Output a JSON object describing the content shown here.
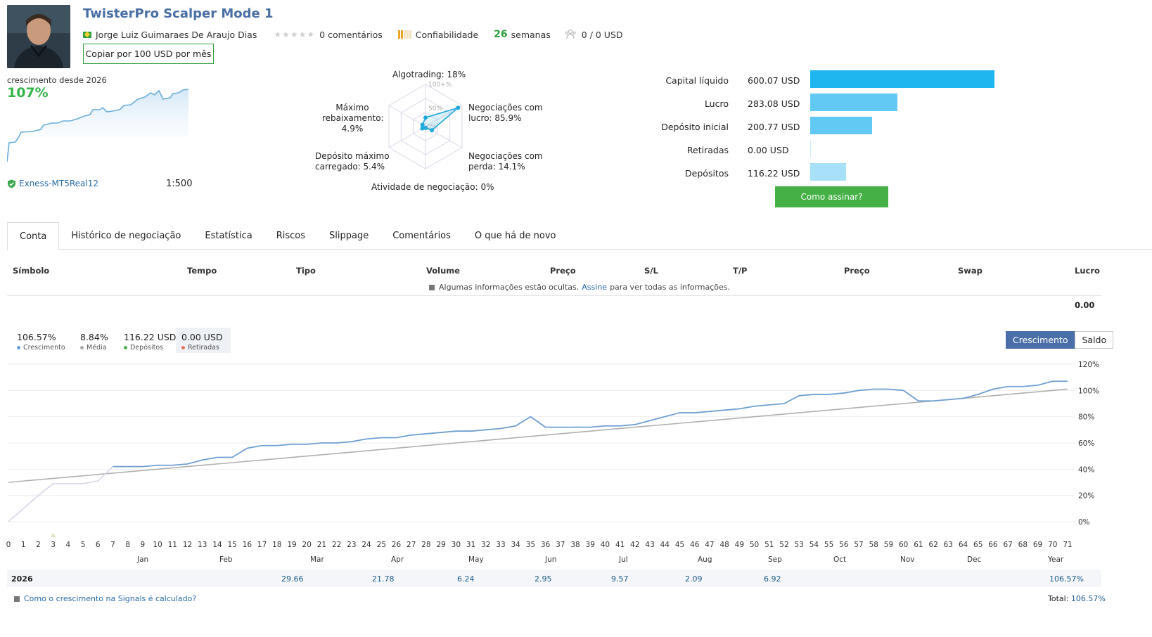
{
  "header": {
    "title": "TwisterPro Scalper Mode 1",
    "author": "Jorge Luiz Guimaraes De Araujo Dias",
    "comments": "0 comentários",
    "reliability": "Confiabilidade",
    "weeks_num": "26",
    "weeks_label": "semanas",
    "subscribers": "0 / 0 USD",
    "copy_button": "Copiar por 100 USD por mês"
  },
  "growth_summary": {
    "label": "crescimento desde 2026",
    "value": "107%",
    "broker": "Exness-MT5Real12",
    "leverage": "1:500"
  },
  "radar": {
    "labels": {
      "algotrading": "Algotrading: 18%",
      "profit_trades_1": "Negociações com",
      "profit_trades_2": "lucro: 85.9%",
      "loss_trades_1": "Negociações com",
      "loss_trades_2": "perda: 14.1%",
      "activity": "Atividade de negociação: 0%",
      "max_deposit_1": "Depósito máximo",
      "max_deposit_2": "carregado: 5.4%",
      "max_dd_1": "Máximo",
      "max_dd_2": "rebaixamento:",
      "max_dd_3": "4.9%"
    },
    "scale_100": "100+%",
    "scale_50": "50%",
    "scale_0": "0%",
    "values": [
      18,
      85.9,
      14.1,
      0,
      5.4,
      4.9
    ]
  },
  "balance_bars": [
    {
      "label": "Capital líquido",
      "value": "600.07 USD",
      "amount": 600.07,
      "color": "#1fb6f0"
    },
    {
      "label": "Lucro",
      "value": "283.08 USD",
      "amount": 283.08,
      "color": "#62c9f4"
    },
    {
      "label": "Depósito inicial",
      "value": "200.77 USD",
      "amount": 200.77,
      "color": "#62c9f4"
    },
    {
      "label": "Retiradas",
      "value": "0.00 USD",
      "amount": 0,
      "color": "#8fd6f7"
    },
    {
      "label": "Depósitos",
      "value": "116.22 USD",
      "amount": 116.22,
      "color": "#a8e0f9"
    }
  ],
  "subscribe_button": "Como assinar?",
  "tabs": [
    "Conta",
    "Histórico de negociação",
    "Estatística",
    "Riscos",
    "Slippage",
    "Comentários",
    "O que há de novo"
  ],
  "table": {
    "headers": [
      "Símbolo",
      "Tempo",
      "Tipo",
      "Volume",
      "Preço",
      "S/L",
      "T/P",
      "Preço",
      "Swap",
      "Lucro"
    ],
    "hidden_note_1": "Algumas informações estão ocultas.",
    "hidden_note_link": "Assine",
    "hidden_note_2": "para ver todas as informações.",
    "total": "0.00"
  },
  "stats": [
    {
      "value": "106.57%",
      "label": "Crescimento",
      "color": "#6a9fd4"
    },
    {
      "value": "8.84%",
      "label": "Média",
      "color": "#aaaaaa"
    },
    {
      "value": "116.22 USD",
      "label": "Depósitos",
      "color": "#4caf50"
    },
    {
      "value": "0.00 USD",
      "label": "Retiradas",
      "color": "#e8765a"
    }
  ],
  "toggle": {
    "growth": "Crescimento",
    "balance": "Saldo"
  },
  "chart_data": {
    "type": "line",
    "x": [
      0,
      1,
      2,
      3,
      4,
      5,
      6,
      7,
      8,
      9,
      10,
      11,
      12,
      13,
      14,
      15,
      16,
      17,
      18,
      19,
      20,
      21,
      22,
      23,
      24,
      25,
      26,
      27,
      28,
      29,
      30,
      31,
      32,
      33,
      34,
      35,
      36,
      37,
      38,
      39,
      40,
      41,
      42,
      43,
      44,
      45,
      46,
      47,
      48,
      49,
      50,
      51,
      52,
      53,
      54,
      55,
      56,
      57,
      58,
      59,
      60,
      61,
      62,
      63,
      64,
      65,
      66,
      67,
      68,
      69,
      70,
      71
    ],
    "series": [
      {
        "values": [
          0,
          10,
          20,
          29,
          29,
          29,
          31,
          42,
          42,
          42,
          43,
          43,
          44,
          47,
          49,
          49,
          56,
          58,
          58,
          59,
          59,
          60,
          60,
          61,
          63,
          64,
          64,
          66,
          67,
          68,
          69,
          69,
          70,
          71,
          73,
          80,
          72,
          72,
          72,
          72,
          73,
          73,
          74,
          77,
          80,
          83,
          83,
          84,
          85,
          86,
          88,
          89,
          90,
          96,
          97,
          97,
          98,
          100,
          101,
          101,
          100,
          92,
          92,
          93,
          94,
          97,
          101,
          103,
          103,
          104,
          107,
          107
        ]
      },
      {
        "values": [
          30,
          31,
          32,
          33,
          34,
          35,
          36,
          37,
          38,
          39,
          40,
          41,
          42,
          43,
          44,
          45,
          46,
          47,
          48,
          49,
          50,
          51,
          52,
          53,
          54,
          55,
          56,
          57,
          58,
          59,
          60,
          61,
          62,
          63,
          64,
          65,
          66,
          67,
          68,
          69,
          70,
          71,
          72,
          73,
          74,
          75,
          76,
          77,
          78,
          79,
          80,
          81,
          82,
          83,
          84,
          85,
          86,
          87,
          88,
          89,
          90,
          91,
          92,
          93,
          94,
          95,
          96,
          97,
          98,
          99,
          100,
          101
        ]
      }
    ],
    "y_ticks": [
      "120%",
      "100%",
      "80%",
      "60%",
      "40%",
      "20%",
      "0%"
    ],
    "ylim": [
      0,
      120
    ],
    "months": [
      "Jan",
      "Feb",
      "Mar",
      "Apr",
      "May",
      "Jun",
      "Jul",
      "Aug",
      "Sep",
      "Oct",
      "Nov",
      "Dec",
      "Year"
    ],
    "year_row": {
      "year": "2026",
      "values": [
        "",
        "29.66",
        "21.78",
        "6.24",
        "2.95",
        "9.57",
        "2.09",
        "6.92",
        "",
        "",
        "",
        "",
        "106.57%"
      ]
    }
  },
  "footer": {
    "calc_link": "Como o crescimento na Signals é calculado?",
    "total_label": "Total:",
    "total_value": "106.57%"
  }
}
